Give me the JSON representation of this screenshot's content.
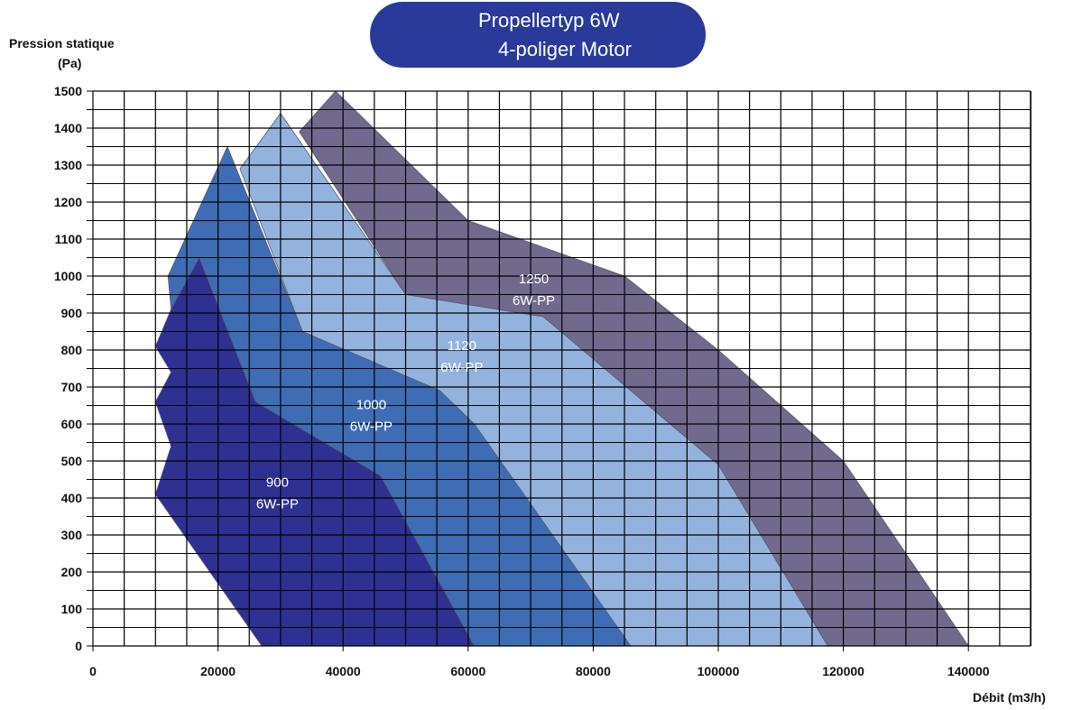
{
  "title": {
    "line1": "Propellertyp 6W",
    "line2": "4-poliger Motor"
  },
  "colors": {
    "title_bg": "#2a3a9a",
    "grid": "#000000",
    "series_900": "#2e3192",
    "series_1000": "#3f6db5",
    "series_1120": "#93b3de",
    "series_1250": "#716a8e"
  },
  "chart_data": {
    "type": "area",
    "title": "Propellertyp 6W 4-poliger Motor",
    "xlabel": "Débit (m3/h)",
    "ylabel_line1": "Pression statique",
    "ylabel_line2": "(Pa)",
    "xlim": [
      0,
      150000
    ],
    "ylim": [
      0,
      1500
    ],
    "grid": true,
    "x_ticks": [
      0,
      20000,
      40000,
      60000,
      80000,
      100000,
      120000,
      140000
    ],
    "y_ticks": [
      0,
      100,
      200,
      300,
      400,
      500,
      600,
      700,
      800,
      900,
      1000,
      1100,
      1200,
      1300,
      1400,
      1500
    ],
    "series": [
      {
        "name": "1250 6W-PP",
        "label_line1": "1250",
        "label_line2": "6W-PP",
        "label_pos": [
          70500,
          980
        ],
        "color": "#716a8e",
        "points": [
          [
            38800,
            1500
          ],
          [
            60000,
            1150
          ],
          [
            85000,
            1000
          ],
          [
            100000,
            800
          ],
          [
            120000,
            500
          ],
          [
            140000,
            0
          ],
          [
            117500,
            0
          ],
          [
            100000,
            490
          ],
          [
            72000,
            890
          ],
          [
            50000,
            950
          ],
          [
            33000,
            1390
          ]
        ]
      },
      {
        "name": "1120 6W-PP",
        "label_line1": "1120",
        "label_line2": "6W-PP",
        "label_pos": [
          59000,
          800
        ],
        "color": "#93b3de",
        "points": [
          [
            30000,
            1440
          ],
          [
            50000,
            950
          ],
          [
            72000,
            890
          ],
          [
            100000,
            490
          ],
          [
            117500,
            0
          ],
          [
            86000,
            0
          ],
          [
            55500,
            690
          ],
          [
            33500,
            850
          ],
          [
            23500,
            1290
          ]
        ]
      },
      {
        "name": "1000 6W-PP",
        "label_line1": "1000",
        "label_line2": "6W-PP",
        "label_pos": [
          44500,
          640
        ],
        "color": "#3f6db5",
        "points": [
          [
            21500,
            1350
          ],
          [
            33500,
            850
          ],
          [
            55500,
            690
          ],
          [
            61000,
            600
          ],
          [
            86000,
            0
          ],
          [
            61000,
            0
          ],
          [
            46000,
            460
          ],
          [
            26000,
            660
          ],
          [
            17000,
            1050
          ],
          [
            12500,
            910
          ],
          [
            12000,
            1000
          ]
        ]
      },
      {
        "name": "900 6W-PP",
        "label_line1": "900",
        "label_line2": "6W-PP",
        "label_pos": [
          29500,
          430
        ],
        "color": "#2e3192",
        "points": [
          [
            17000,
            1050
          ],
          [
            26000,
            660
          ],
          [
            46000,
            460
          ],
          [
            61000,
            0
          ],
          [
            27000,
            0
          ],
          [
            10000,
            410
          ],
          [
            12500,
            540
          ],
          [
            10000,
            660
          ],
          [
            12500,
            740
          ],
          [
            10000,
            810
          ],
          [
            12500,
            910
          ]
        ]
      }
    ]
  }
}
